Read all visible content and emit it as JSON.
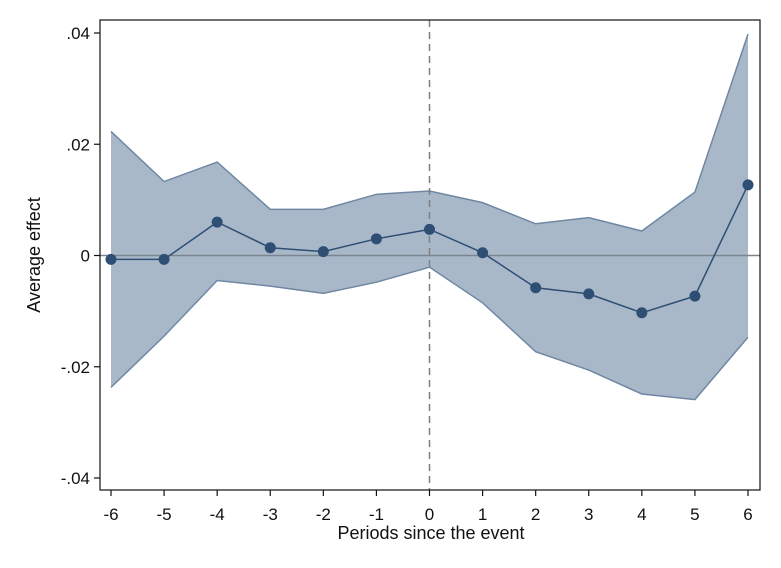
{
  "chart_data": {
    "type": "line",
    "title": "",
    "xlabel": "Periods since the event",
    "ylabel": "Average effect",
    "xlim": [
      -6,
      6
    ],
    "ylim": [
      -0.04,
      0.04
    ],
    "grid": false,
    "reference_lines": {
      "x": 0,
      "y": 0
    },
    "x_ticks": [
      {
        "value": -6,
        "label": "-6"
      },
      {
        "value": -5,
        "label": "-5"
      },
      {
        "value": -4,
        "label": "-4"
      },
      {
        "value": -3,
        "label": "-3"
      },
      {
        "value": -2,
        "label": "-2"
      },
      {
        "value": -1,
        "label": "-1"
      },
      {
        "value": 0,
        "label": "0"
      },
      {
        "value": 1,
        "label": "1"
      },
      {
        "value": 2,
        "label": "2"
      },
      {
        "value": 3,
        "label": "3"
      },
      {
        "value": 4,
        "label": "4"
      },
      {
        "value": 5,
        "label": "5"
      },
      {
        "value": 6,
        "label": "6"
      }
    ],
    "y_ticks": [
      {
        "value": 0.04,
        "label": ".04"
      },
      {
        "value": 0.02,
        "label": ".02"
      },
      {
        "value": 0,
        "label": "0"
      },
      {
        "value": -0.02,
        "label": "-.02"
      },
      {
        "value": -0.04,
        "label": "-.04"
      }
    ],
    "x": [
      -6,
      -5,
      -4,
      -3,
      -2,
      -1,
      0,
      1,
      2,
      3,
      4,
      5,
      6
    ],
    "series": [
      {
        "estimate": [
          -0.0007,
          -0.0007,
          0.006,
          0.0014,
          0.0007,
          0.003,
          0.0047,
          0.0005,
          -0.0058,
          -0.0069,
          -0.0103,
          -0.0073,
          0.0127
        ],
        "ci_upper": [
          0.0223,
          0.0133,
          0.0168,
          0.0083,
          0.0083,
          0.011,
          0.0116,
          0.0095,
          0.0057,
          0.0068,
          0.0044,
          0.0114,
          0.0398
        ],
        "ci_lower": [
          -0.0237,
          -0.0145,
          -0.0045,
          -0.0055,
          -0.0068,
          -0.0048,
          -0.0021,
          -0.0085,
          -0.0173,
          -0.0206,
          -0.0249,
          -0.0259,
          -0.0147
        ]
      }
    ],
    "colors": {
      "estimate": "#2e4f73",
      "band_fill": "#a9b8c9",
      "band_edge": "#6f87a2",
      "zero_line": "#7a8590",
      "event_line": "#7f7f7f",
      "axis": "#111111"
    }
  }
}
